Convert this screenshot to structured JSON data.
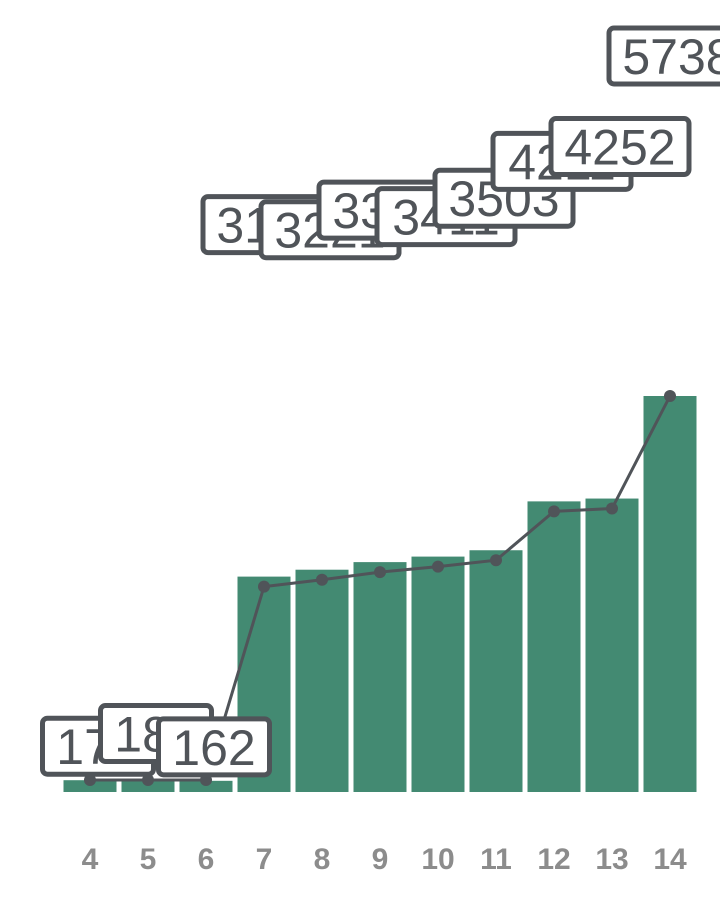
{
  "chart_data": {
    "type": "bar",
    "categories": [
      "4",
      "5",
      "6",
      "7",
      "8",
      "9",
      "10",
      "11",
      "12",
      "13",
      "14"
    ],
    "values": [
      171,
      181,
      162,
      3121,
      3221,
      3331,
      3411,
      3503,
      4211,
      4252,
      5738
    ],
    "line_values": [
      171,
      181,
      162,
      3121,
      3221,
      3331,
      3411,
      3503,
      4211,
      4252,
      5738
    ],
    "data_labels": [
      "171",
      "181",
      "162",
      "3121",
      "3221",
      "3331",
      "3411",
      "3503",
      "4211",
      "4252",
      "5738"
    ],
    "ylim": [
      0,
      5738
    ],
    "grid": false,
    "legend": "none",
    "bar_color": "#438a72",
    "line_color": "#505459",
    "label_color": "#505459",
    "tick_color": "#8c8c8c"
  }
}
